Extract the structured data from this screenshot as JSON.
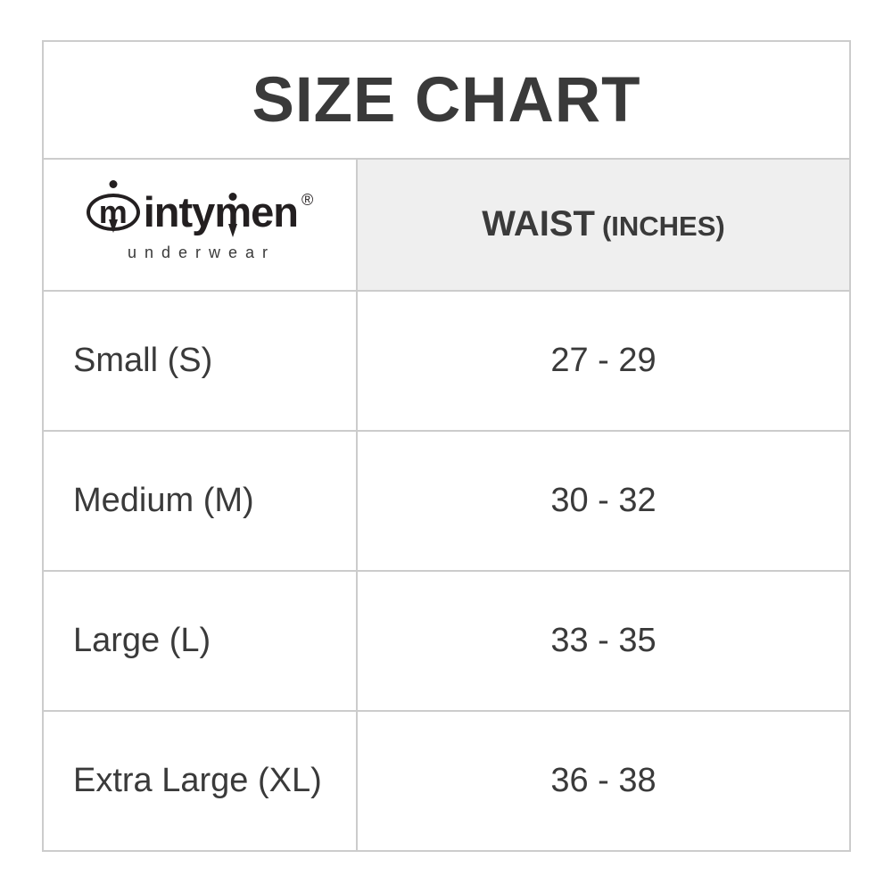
{
  "title": "SIZE CHART",
  "brand": {
    "monogram": "m",
    "name_pre": "inty",
    "name_m": "m",
    "name_post": "en",
    "registered": "®",
    "tagline": "underwear"
  },
  "header": {
    "waist_label": "WAIST",
    "waist_unit": "(INCHES)"
  },
  "rows": [
    {
      "size": "Small (S)",
      "waist": "27 - 29"
    },
    {
      "size": "Medium (M)",
      "waist": "30 - 32"
    },
    {
      "size": "Large (L)",
      "waist": "33 - 35"
    },
    {
      "size": "Extra Large (XL)",
      "waist": "36 - 38"
    }
  ],
  "colors": {
    "border": "#cccccc",
    "header_bg": "#efefef",
    "text": "#3a3a3a",
    "logo_black": "#231f20",
    "page_bg": "#ffffff"
  }
}
